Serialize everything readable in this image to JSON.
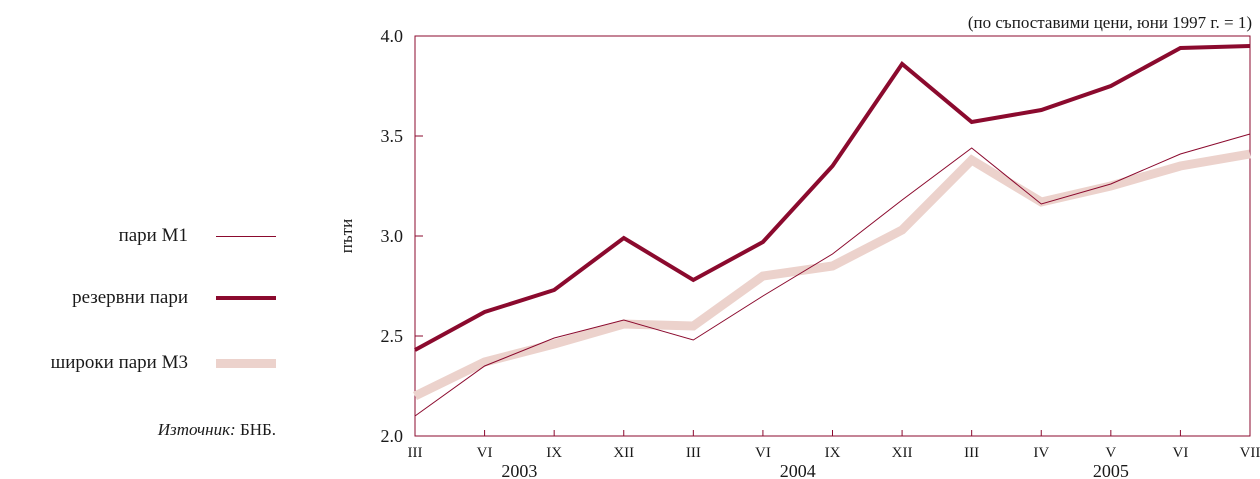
{
  "legend": {
    "items": [
      {
        "label": "пари М1",
        "series": "m1"
      },
      {
        "label": "резервни пари",
        "series": "reserve"
      },
      {
        "label": "широки пари М3",
        "series": "m3"
      }
    ]
  },
  "source": {
    "prefix": "Източник:",
    "text": "БНБ."
  },
  "chart_data": {
    "type": "line",
    "note": "(по съпоставими цени, юни 1997 г. = 1)",
    "ylabel": "пъти",
    "ylim": [
      2.0,
      4.0
    ],
    "yticks": [
      "2.0",
      "2.5",
      "3.0",
      "3.5",
      "4.0"
    ],
    "categories": [
      "III",
      "VI",
      "IX",
      "XII",
      "III",
      "VI",
      "IX",
      "XII",
      "III",
      "IV",
      "V",
      "VI",
      "VII"
    ],
    "years": [
      {
        "label": "2003",
        "from": 0,
        "to": 3
      },
      {
        "label": "2004",
        "from": 4,
        "to": 7
      },
      {
        "label": "2005",
        "from": 8,
        "to": 12
      }
    ],
    "series": [
      {
        "id": "m3",
        "name": "широки пари М3",
        "color": "#ecd2cc",
        "values": [
          2.2,
          2.37,
          2.46,
          2.56,
          2.55,
          2.8,
          2.85,
          3.03,
          3.38,
          3.17,
          3.25,
          3.35,
          3.41
        ]
      },
      {
        "id": "m1",
        "name": "пари М1",
        "color": "#8b0a2e",
        "values": [
          2.1,
          2.35,
          2.49,
          2.58,
          2.48,
          2.7,
          2.91,
          3.18,
          3.44,
          3.16,
          3.26,
          3.41,
          3.51
        ]
      },
      {
        "id": "reserve",
        "name": "резервни пари",
        "color": "#8b0a2e",
        "values": [
          2.43,
          2.62,
          2.73,
          2.99,
          2.78,
          2.97,
          3.35,
          3.86,
          3.57,
          3.63,
          3.75,
          3.94,
          3.95
        ]
      }
    ]
  }
}
